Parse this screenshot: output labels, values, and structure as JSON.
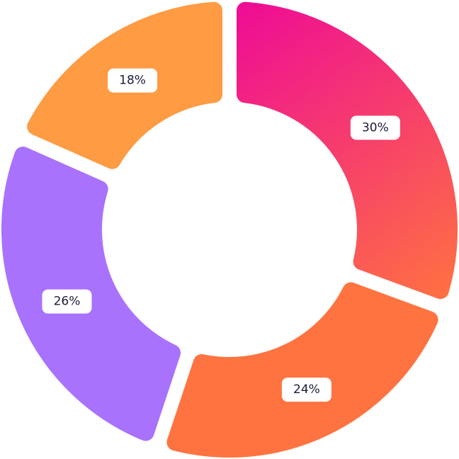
{
  "chart_data": {
    "type": "donut",
    "values": [
      30,
      24,
      26,
      18
    ],
    "value_labels": [
      "30%",
      "24%",
      "26%",
      "18%"
    ],
    "colors": [
      "#ee0a97",
      "#ff7340",
      "#a872fd",
      "#ff9b42"
    ]
  }
}
